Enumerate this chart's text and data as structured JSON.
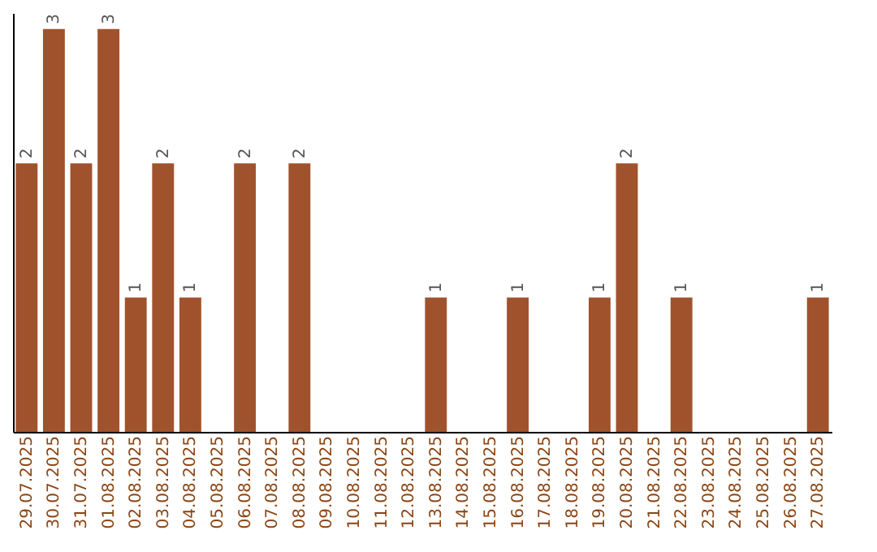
{
  "chart_data": {
    "type": "bar",
    "categories": [
      "29.07.2025",
      "30.07.2025",
      "31.07.2025",
      "01.08.2025",
      "02.08.2025",
      "03.08.2025",
      "04.08.2025",
      "05.08.2025",
      "06.08.2025",
      "07.08.2025",
      "08.08.2025",
      "09.08.2025",
      "10.08.2025",
      "11.08.2025",
      "12.08.2025",
      "13.08.2025",
      "14.08.2025",
      "15.08.2025",
      "16.08.2025",
      "17.08.2025",
      "18.08.2025",
      "19.08.2025",
      "20.08.2025",
      "21.08.2025",
      "22.08.2025",
      "23.08.2025",
      "24.08.2025",
      "25.08.2025",
      "26.08.2025",
      "27.08.2025"
    ],
    "values": [
      2,
      3,
      2,
      3,
      1,
      2,
      1,
      0,
      2,
      0,
      2,
      0,
      0,
      0,
      0,
      1,
      0,
      0,
      1,
      0,
      0,
      1,
      2,
      0,
      1,
      0,
      0,
      0,
      0,
      1
    ],
    "value_labels": [
      "2",
      "3",
      "2",
      "3",
      "1",
      "2",
      "1",
      null,
      "2",
      null,
      "2",
      null,
      null,
      null,
      null,
      "1",
      null,
      null,
      "1",
      null,
      null,
      "1",
      "2",
      null,
      "1",
      null,
      null,
      null,
      null,
      "1"
    ],
    "color": "#a0522d",
    "ylim": [
      0,
      3.12
    ],
    "tick_labels": "x",
    "grid": false
  }
}
